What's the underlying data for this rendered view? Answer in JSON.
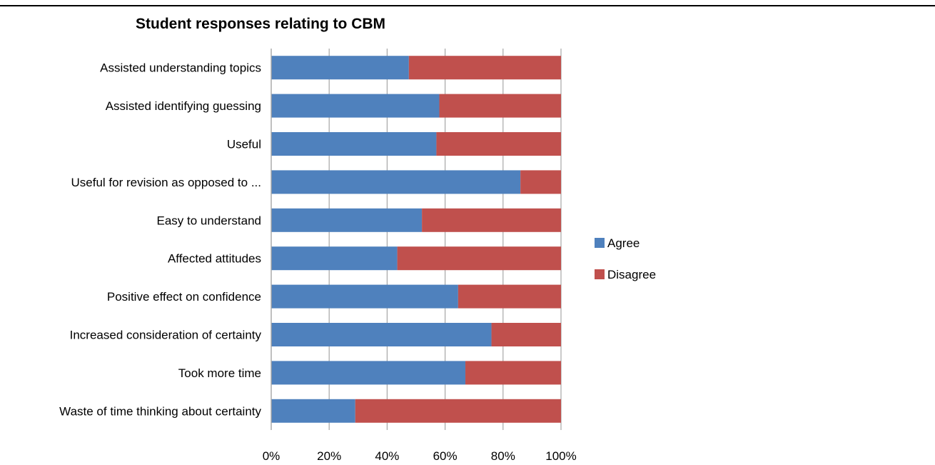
{
  "chart_data": {
    "type": "bar",
    "orientation": "horizontal",
    "stacked": true,
    "percent_stacked": true,
    "title": "Student responses relating to CBM",
    "categories": [
      "Assisted understanding topics",
      "Assisted identifying guessing",
      "Useful",
      "Useful for revision as opposed to ...",
      "Easy to understand",
      "Affected attitudes",
      "Positive effect on confidence",
      "Increased consideration of certainty",
      "Took more time",
      "Waste of time thinking about certainty"
    ],
    "series": [
      {
        "name": "Agree",
        "color": "#4f81bd",
        "values": [
          47.5,
          58,
          57,
          86,
          52,
          43.5,
          64.5,
          76,
          67,
          29
        ]
      },
      {
        "name": "Disagree",
        "color": "#c0504d",
        "values": [
          52.5,
          42,
          43,
          14,
          48,
          56.5,
          35.5,
          24,
          33,
          71
        ]
      }
    ],
    "xlim": [
      0,
      100
    ],
    "x_ticks": [
      "0%",
      "20%",
      "40%",
      "60%",
      "80%",
      "100%"
    ],
    "grid": "vertical",
    "legend_position": "right",
    "gridline_color": "#a6a6a6"
  }
}
